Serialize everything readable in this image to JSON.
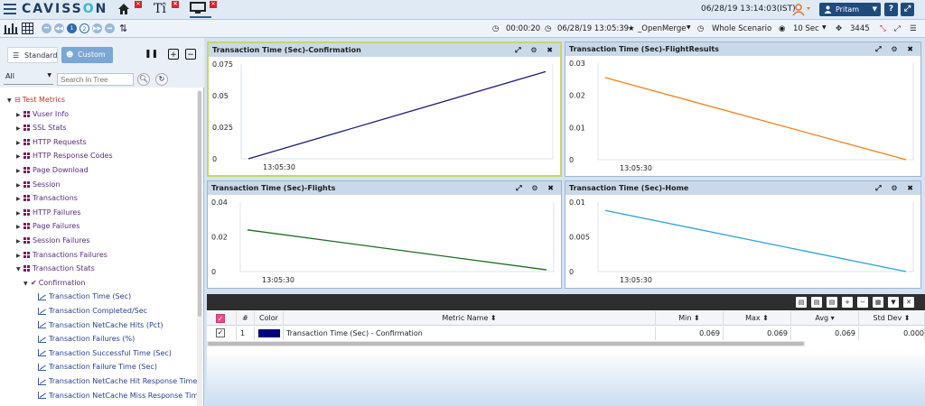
{
  "header": {
    "logo_pre": "CAVISS",
    "logo_o": "O",
    "logo_post": "N",
    "datetime": "06/28/19 13:14:03(IST)",
    "user": "Pritam",
    "help": "?",
    "tab_t_label": "Tî"
  },
  "toolbar": {
    "page_prev_num": "1",
    "page_next_num": "2",
    "elapsed": "00:00:20",
    "run_datetime": "06/28/19 13:05:39",
    "view": "_OpenMerge",
    "scope": "Whole Scenario",
    "interval": "10 Sec",
    "count": "3445"
  },
  "left": {
    "tab_standard": "Standard",
    "tab_custom": "Custom",
    "select_value": "All",
    "search_placeholder": "Search In Tree",
    "tree": [
      {
        "label": "Test Metrics",
        "type": "root"
      },
      {
        "label": "Vuser Info",
        "type": "group"
      },
      {
        "label": "SSL Stats",
        "type": "group"
      },
      {
        "label": "HTTP Requests",
        "type": "group"
      },
      {
        "label": "HTTP Response Codes",
        "type": "group"
      },
      {
        "label": "Page Download",
        "type": "group"
      },
      {
        "label": "Session",
        "type": "group"
      },
      {
        "label": "Transactions",
        "type": "group"
      },
      {
        "label": "HTTP Failures",
        "type": "group"
      },
      {
        "label": "Page Failures",
        "type": "group"
      },
      {
        "label": "Session Failures",
        "type": "group"
      },
      {
        "label": "Transactions Failures",
        "type": "group"
      },
      {
        "label": "Transaction Stats",
        "type": "group-open"
      },
      {
        "label": "Confirmation",
        "type": "sub"
      },
      {
        "label": "Transaction Time (Sec)",
        "type": "leaf"
      },
      {
        "label": "Transaction Completed/Sec",
        "type": "leaf"
      },
      {
        "label": "Transaction NetCache Hits (Pct)",
        "type": "leaf"
      },
      {
        "label": "Transaction Failures (%)",
        "type": "leaf"
      },
      {
        "label": "Transaction Successful Time (Sec)",
        "type": "leaf"
      },
      {
        "label": "Transaction Failure Time (Sec)",
        "type": "leaf"
      },
      {
        "label": "Transaction NetCache Hit Response Time (S",
        "type": "leaf"
      },
      {
        "label": "Transaction NetCache Miss Response Time",
        "type": "leaf"
      }
    ]
  },
  "panels": [
    {
      "title": "Transaction Time (Sec)-Confirmation",
      "icons": "⤢ ⚙ ✖"
    },
    {
      "title": "Transaction Time (Sec)-FlightResults",
      "icons": "⤢ ⚙ ✖"
    },
    {
      "title": "Transaction Time (Sec)-Flights",
      "icons": "⤢ ⚙ ✖"
    },
    {
      "title": "Transaction Time (Sec)-Home",
      "icons": "⤢ ⚙ ✖"
    }
  ],
  "chart_data": [
    {
      "type": "line",
      "title": "Transaction Time (Sec)-Confirmation",
      "y_ticks": [
        "0.075",
        "0.05",
        "0.025",
        "0"
      ],
      "x_tick": "13:05:30",
      "ylim": [
        0,
        0.075
      ],
      "series": [
        {
          "color": "#1c1c7a",
          "values": [
            0.0,
            0.069
          ]
        }
      ]
    },
    {
      "type": "line",
      "title": "Transaction Time (Sec)-FlightResults",
      "y_ticks": [
        "0.03",
        "0.02",
        "0.01",
        "0"
      ],
      "x_tick": "13:05:30",
      "ylim": [
        0,
        0.03
      ],
      "series": [
        {
          "color": "#f07f1c",
          "values": [
            0.0255,
            0.0
          ]
        }
      ]
    },
    {
      "type": "line",
      "title": "Transaction Time (Sec)-Flights",
      "y_ticks": [
        "0.04",
        "0.02",
        "0"
      ],
      "x_tick": "13:05:30",
      "ylim": [
        0,
        0.04
      ],
      "series": [
        {
          "color": "#1a6d1a",
          "values": [
            0.024,
            0.001
          ]
        }
      ]
    },
    {
      "type": "line",
      "title": "Transaction Time (Sec)-Home",
      "y_ticks": [
        "0.01",
        "0.005",
        "0"
      ],
      "x_tick": "13:05:30",
      "ylim": [
        0,
        0.01
      ],
      "series": [
        {
          "color": "#2aa2d8",
          "values": [
            0.0088,
            0.0
          ]
        }
      ]
    }
  ],
  "grid": {
    "columns": [
      "#",
      "Color",
      "Metric Name ⬍",
      "Min ⬍",
      "Max ⬍",
      "Avg ▾",
      "Std Dev ⬍"
    ],
    "row": {
      "num": "1",
      "color": "#000080",
      "metric": "Transaction Time (Sec) - Confirmation",
      "min": "0.069",
      "max": "0.069",
      "avg": "0.069",
      "std": "0.000"
    }
  }
}
